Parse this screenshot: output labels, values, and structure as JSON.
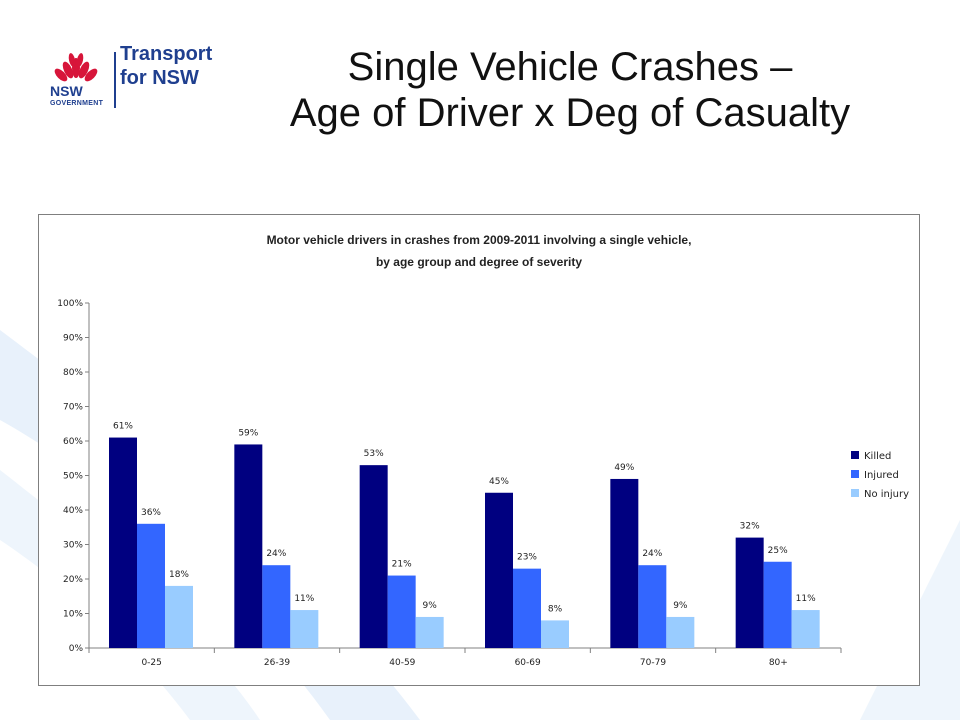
{
  "slide": {
    "title_line1": "Single Vehicle Crashes –",
    "title_line2": "Age of Driver x Deg of Casualty"
  },
  "logo": {
    "brand_nsw": "NSW",
    "brand_government": "GOVERNMENT",
    "line1": "Transport",
    "line2": "for NSW"
  },
  "colors": {
    "killed": "#000080",
    "injured": "#3366ff",
    "no_injury": "#99ccff",
    "logo_red": "#d7153a",
    "logo_blue": "#1f3f8f",
    "swoosh": "#e8f1fb"
  },
  "chart_data": {
    "type": "bar",
    "title_line1": "Motor vehicle drivers in crashes from 2009-2011 involving a single vehicle,",
    "title_line2": "by age group and degree of severity",
    "categories": [
      "0-25",
      "26-39",
      "40-59",
      "60-69",
      "70-79",
      "80+"
    ],
    "series": [
      {
        "name": "Killed",
        "values": [
          61,
          59,
          53,
          45,
          49,
          32
        ]
      },
      {
        "name": "Injured",
        "values": [
          36,
          24,
          21,
          23,
          24,
          25
        ]
      },
      {
        "name": "No injury",
        "values": [
          18,
          11,
          9,
          8,
          9,
          11
        ]
      }
    ],
    "ylim": [
      0,
      100
    ],
    "yticks": [
      "0%",
      "10%",
      "20%",
      "30%",
      "40%",
      "50%",
      "60%",
      "70%",
      "80%",
      "90%",
      "100%"
    ],
    "value_suffix": "%",
    "legend_position": "right",
    "grid": false
  }
}
